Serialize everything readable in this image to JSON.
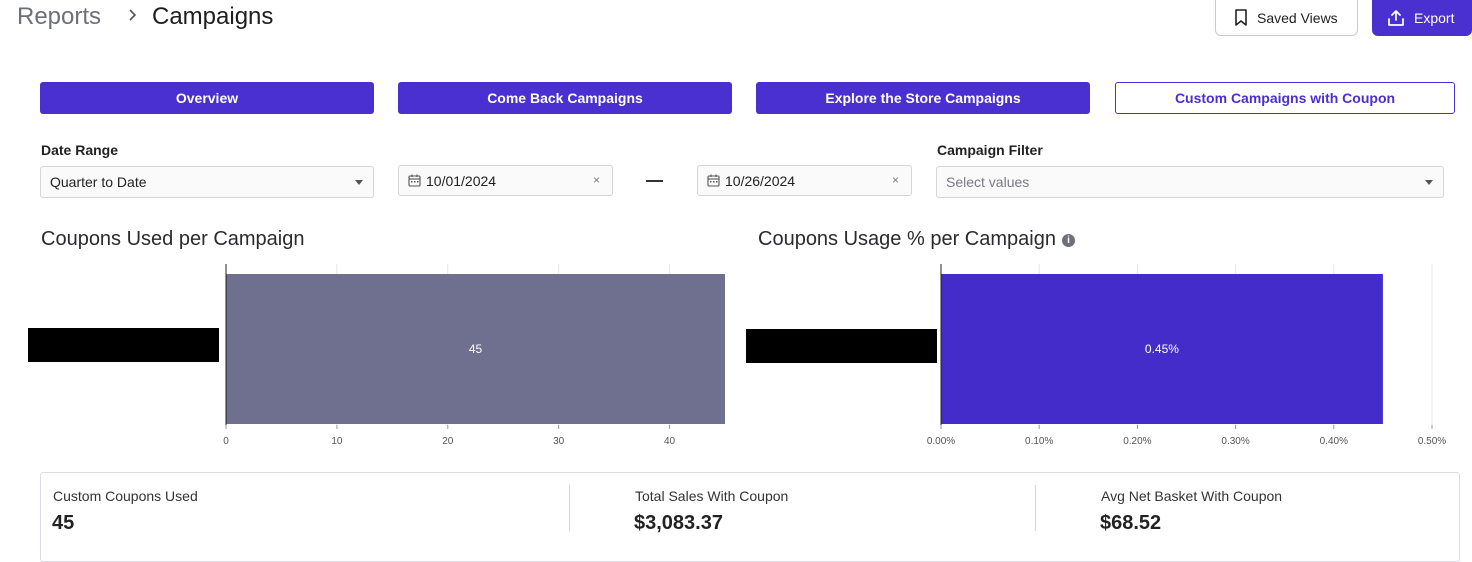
{
  "header": {
    "breadcrumb_root": "Reports",
    "breadcrumb_current": "Campaigns",
    "saved_views_label": "Saved Views",
    "export_label": "Export"
  },
  "tabs": [
    {
      "label": "Overview",
      "active": false
    },
    {
      "label": "Come Back Campaigns",
      "active": false
    },
    {
      "label": "Explore the Store Campaigns",
      "active": false
    },
    {
      "label": "Custom Campaigns with Coupon",
      "active": true
    }
  ],
  "filters": {
    "date_range_label": "Date Range",
    "date_range_value": "Quarter to Date",
    "start_date": "10/01/2024",
    "end_date": "10/26/2024",
    "clear_glyph": "×",
    "campaign_filter_label": "Campaign Filter",
    "campaign_filter_placeholder": "Select values"
  },
  "colors": {
    "accent": "#4a2fd1",
    "bar_gray": "#6f6f8f",
    "bar_purple": "#442ccb",
    "redacted": "#000000"
  },
  "chart_data": [
    {
      "type": "bar",
      "orientation": "horizontal",
      "title": "Coupons Used per Campaign",
      "categories": [
        "[redacted]"
      ],
      "values": [
        45
      ],
      "data_labels": [
        "45"
      ],
      "xlim": [
        0,
        45
      ],
      "xticks": [
        0,
        10,
        20,
        30,
        40
      ],
      "xtick_labels": [
        "0",
        "10",
        "20",
        "30",
        "40"
      ],
      "grid": true
    },
    {
      "type": "bar",
      "orientation": "horizontal",
      "title": "Coupons Usage % per Campaign",
      "categories": [
        "[redacted]"
      ],
      "values": [
        0.45
      ],
      "data_labels": [
        "0.45%"
      ],
      "xlim": [
        0,
        0.5
      ],
      "xticks": [
        0,
        0.1,
        0.2,
        0.3,
        0.4,
        0.5
      ],
      "xtick_labels": [
        "0.00%",
        "0.10%",
        "0.20%",
        "0.30%",
        "0.40%",
        "0.50%"
      ],
      "grid": true
    }
  ],
  "kpis": [
    {
      "label": "Custom Coupons Used",
      "value": "45"
    },
    {
      "label": "Total Sales With Coupon",
      "value": "$3,083.37"
    },
    {
      "label": "Avg Net Basket With Coupon",
      "value": "$68.52"
    }
  ],
  "icons": {
    "chevron": "chevron-right-icon",
    "bookmark": "bookmark-icon",
    "export": "upload-icon",
    "calendar": "calendar-icon",
    "info": "info-icon"
  }
}
